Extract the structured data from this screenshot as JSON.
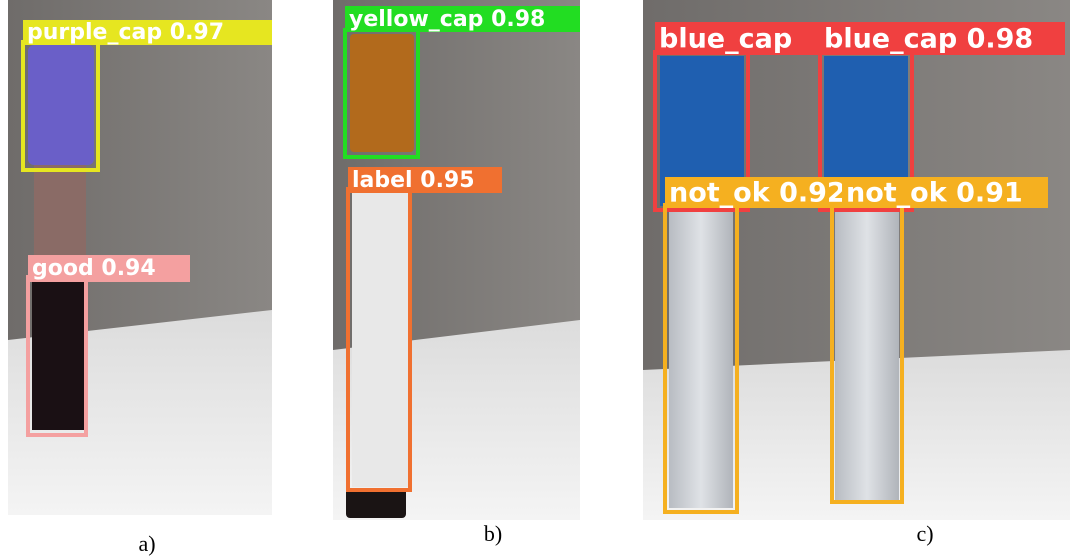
{
  "panels": [
    {
      "caption": "a)",
      "detections": [
        {
          "label": "purple_cap 0.97"
        },
        {
          "label": "good 0.94"
        }
      ]
    },
    {
      "caption": "b)",
      "detections": [
        {
          "label": "yellow_cap 0.98"
        },
        {
          "label": "label 0.95"
        }
      ]
    },
    {
      "caption": "c)",
      "detections": [
        {
          "label": "blue_cap"
        },
        {
          "label": "blue_cap 0.98"
        },
        {
          "label": "not_ok 0.92"
        },
        {
          "label": "not_ok 0.91"
        }
      ]
    }
  ]
}
